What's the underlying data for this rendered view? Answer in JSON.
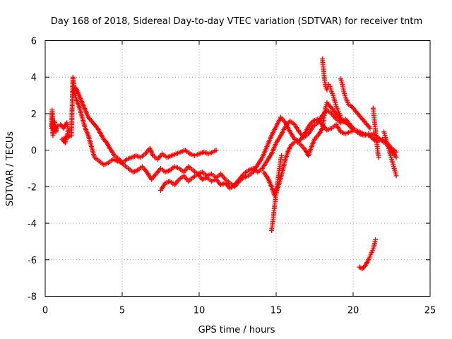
{
  "chart_data": {
    "type": "scatter",
    "title": "Day 168 of 2018, Sidereal Day-to-day VTEC variation (SDTVAR) for receiver tntm",
    "xlabel": "GPS time / hours",
    "ylabel": "SDTVAR / TECUs",
    "xlim": [
      0,
      25
    ],
    "ylim": [
      -8,
      6
    ],
    "xticks": [
      "0",
      "5",
      "10",
      "15",
      "20",
      "25"
    ],
    "yticks": [
      "-8",
      "-6",
      "-4",
      "-2",
      "0",
      "2",
      "4",
      "6"
    ],
    "grid": true,
    "marker": "+",
    "color": "#ff0000",
    "series": [
      {
        "name": "s1",
        "points": [
          [
            0.4,
            1.2
          ],
          [
            0.45,
            2.2
          ],
          [
            0.5,
            0.8
          ],
          [
            0.6,
            1.6
          ],
          [
            0.7,
            1.0
          ],
          [
            0.8,
            1.3
          ],
          [
            1.0,
            1.4
          ],
          [
            1.2,
            1.2
          ],
          [
            1.4,
            1.5
          ],
          [
            1.5,
            1.1
          ],
          [
            1.3,
            0.4
          ],
          [
            1.1,
            0.6
          ],
          [
            1.7,
            0.8
          ],
          [
            1.8,
            4.0
          ],
          [
            1.9,
            3.2
          ],
          [
            2.0,
            2.8
          ],
          [
            2.2,
            2.4
          ],
          [
            2.4,
            1.8
          ],
          [
            2.6,
            1.2
          ],
          [
            2.8,
            0.8
          ],
          [
            3.0,
            0.2
          ],
          [
            3.2,
            -0.4
          ],
          [
            3.5,
            -0.6
          ],
          [
            3.8,
            -0.8
          ],
          [
            4.1,
            -0.7
          ],
          [
            4.4,
            -0.5
          ],
          [
            4.7,
            -0.6
          ],
          [
            5.0,
            -0.7
          ],
          [
            5.3,
            -0.5
          ],
          [
            5.6,
            -0.4
          ],
          [
            5.9,
            -0.3
          ],
          [
            6.2,
            -0.4
          ],
          [
            6.5,
            -0.2
          ],
          [
            6.8,
            0.1
          ],
          [
            7.0,
            -0.3
          ],
          [
            7.3,
            -0.5
          ],
          [
            7.6,
            -0.2
          ],
          [
            7.9,
            -0.4
          ],
          [
            8.2,
            -0.3
          ],
          [
            8.5,
            -0.2
          ],
          [
            8.8,
            -0.1
          ],
          [
            9.1,
            0.0
          ],
          [
            9.4,
            -0.2
          ],
          [
            9.7,
            -0.3
          ],
          [
            10.0,
            -0.2
          ],
          [
            10.3,
            -0.1
          ],
          [
            10.6,
            -0.2
          ],
          [
            10.9,
            -0.1
          ],
          [
            11.1,
            0.0
          ]
        ]
      },
      {
        "name": "s2",
        "points": [
          [
            1.8,
            3.2
          ],
          [
            2.0,
            3.4
          ],
          [
            2.2,
            3.0
          ],
          [
            2.4,
            2.6
          ],
          [
            2.6,
            2.2
          ],
          [
            2.8,
            1.8
          ],
          [
            3.0,
            1.6
          ],
          [
            3.2,
            1.4
          ],
          [
            3.4,
            1.2
          ],
          [
            3.6,
            0.9
          ],
          [
            3.8,
            0.6
          ],
          [
            4.0,
            0.4
          ],
          [
            4.2,
            0.1
          ],
          [
            4.5,
            -0.3
          ],
          [
            4.8,
            -0.5
          ],
          [
            5.1,
            -0.8
          ],
          [
            5.4,
            -1.0
          ],
          [
            5.7,
            -1.2
          ],
          [
            6.0,
            -1.1
          ],
          [
            6.3,
            -0.9
          ],
          [
            6.6,
            -1.2
          ],
          [
            6.9,
            -1.6
          ],
          [
            7.2,
            -1.3
          ],
          [
            7.5,
            -1.0
          ],
          [
            7.8,
            -1.2
          ],
          [
            8.1,
            -1.1
          ],
          [
            8.4,
            -0.9
          ],
          [
            8.7,
            -1.0
          ],
          [
            9.0,
            -1.2
          ],
          [
            9.3,
            -0.9
          ],
          [
            9.6,
            -1.1
          ],
          [
            9.9,
            -1.3
          ],
          [
            10.2,
            -1.2
          ],
          [
            10.5,
            -1.4
          ],
          [
            10.8,
            -1.3
          ],
          [
            11.1,
            -1.5
          ],
          [
            11.4,
            -1.3
          ],
          [
            11.7,
            -1.6
          ],
          [
            12.0,
            -1.8
          ],
          [
            12.3,
            -2.0
          ],
          [
            12.6,
            -1.7
          ],
          [
            12.9,
            -1.5
          ],
          [
            13.2,
            -1.4
          ],
          [
            13.5,
            -1.2
          ],
          [
            13.8,
            -0.8
          ],
          [
            14.1,
            -0.4
          ],
          [
            14.4,
            0.2
          ],
          [
            14.7,
            0.8
          ],
          [
            15.0,
            1.3
          ],
          [
            15.3,
            1.8
          ],
          [
            15.6,
            1.5
          ],
          [
            15.9,
            1.0
          ],
          [
            16.2,
            0.6
          ],
          [
            16.5,
            0.5
          ],
          [
            16.8,
            0.8
          ],
          [
            17.1,
            1.3
          ],
          [
            17.4,
            1.6
          ],
          [
            17.7,
            1.7
          ],
          [
            18.0,
            1.4
          ],
          [
            18.3,
            1.1
          ],
          [
            18.6,
            1.2
          ],
          [
            18.9,
            1.4
          ],
          [
            19.2,
            1.0
          ],
          [
            19.5,
            0.9
          ],
          [
            19.8,
            1.0
          ],
          [
            20.1,
            1.1
          ],
          [
            20.4,
            0.9
          ],
          [
            20.7,
            0.8
          ],
          [
            21.0,
            0.9
          ],
          [
            21.3,
            0.6
          ],
          [
            21.6,
            0.5
          ],
          [
            21.9,
            0.6
          ],
          [
            22.2,
            0.4
          ],
          [
            22.5,
            0.1
          ],
          [
            22.8,
            -0.1
          ]
        ]
      },
      {
        "name": "s3",
        "points": [
          [
            7.5,
            -2.2
          ],
          [
            7.8,
            -1.8
          ],
          [
            8.1,
            -1.7
          ],
          [
            8.4,
            -1.9
          ],
          [
            8.7,
            -1.6
          ],
          [
            9.0,
            -1.4
          ],
          [
            9.3,
            -1.7
          ],
          [
            9.6,
            -1.5
          ],
          [
            9.9,
            -1.3
          ],
          [
            10.2,
            -1.6
          ],
          [
            10.5,
            -1.5
          ],
          [
            10.8,
            -1.7
          ],
          [
            11.1,
            -1.6
          ],
          [
            11.4,
            -1.9
          ],
          [
            11.7,
            -1.8
          ],
          [
            12.0,
            -2.1
          ],
          [
            12.3,
            -1.9
          ],
          [
            12.6,
            -1.6
          ],
          [
            12.9,
            -1.3
          ],
          [
            13.2,
            -1.1
          ],
          [
            13.5,
            -1.0
          ],
          [
            13.8,
            -1.2
          ],
          [
            14.1,
            -1.0
          ],
          [
            14.4,
            -0.6
          ],
          [
            14.7,
            -0.2
          ],
          [
            15.0,
            0.4
          ],
          [
            15.3,
            0.8
          ],
          [
            15.6,
            1.3
          ],
          [
            15.9,
            1.6
          ],
          [
            16.2,
            1.4
          ],
          [
            16.5,
            1.0
          ],
          [
            16.8,
            0.7
          ],
          [
            17.1,
            0.9
          ],
          [
            17.4,
            1.3
          ],
          [
            17.7,
            1.5
          ],
          [
            18.0,
            1.9
          ],
          [
            18.3,
            2.2
          ],
          [
            18.6,
            2.0
          ],
          [
            18.9,
            1.7
          ],
          [
            19.2,
            1.5
          ],
          [
            19.5,
            1.7
          ],
          [
            19.8,
            1.4
          ],
          [
            20.1,
            1.1
          ],
          [
            20.4,
            1.0
          ],
          [
            20.7,
            0.9
          ],
          [
            21.0,
            0.8
          ],
          [
            21.3,
            0.9
          ],
          [
            21.6,
            0.7
          ],
          [
            21.9,
            0.5
          ],
          [
            22.2,
            0.3
          ],
          [
            22.5,
            0.0
          ],
          [
            22.8,
            -0.4
          ]
        ]
      },
      {
        "name": "s4",
        "points": [
          [
            14.2,
            -1.2
          ],
          [
            14.5,
            -1.6
          ],
          [
            14.7,
            -2.0
          ],
          [
            14.9,
            -2.5
          ],
          [
            15.0,
            -2.3
          ],
          [
            15.2,
            -1.8
          ],
          [
            15.4,
            -1.2
          ],
          [
            15.6,
            -0.5
          ],
          [
            15.8,
            0.0
          ],
          [
            16.0,
            0.3
          ],
          [
            16.3,
            0.5
          ],
          [
            16.6,
            0.3
          ],
          [
            16.9,
            0.0
          ],
          [
            17.1,
            -0.3
          ],
          [
            17.3,
            0.2
          ],
          [
            17.5,
            0.6
          ],
          [
            17.8,
            0.9
          ],
          [
            18.0,
            1.2
          ],
          [
            18.1,
            1.8
          ],
          [
            18.2,
            2.3
          ],
          [
            18.3,
            2.6
          ],
          [
            18.5,
            2.4
          ],
          [
            18.7,
            2.2
          ],
          [
            18.9,
            2.0
          ],
          [
            19.1,
            1.8
          ],
          [
            19.3,
            1.6
          ],
          [
            19.5,
            1.5
          ],
          [
            19.7,
            1.4
          ],
          [
            19.9,
            1.2
          ]
        ]
      },
      {
        "name": "s5",
        "points": [
          [
            14.7,
            -4.4
          ],
          [
            14.75,
            -4.1
          ],
          [
            14.8,
            -3.8
          ],
          [
            14.85,
            -3.4
          ],
          [
            14.9,
            -3.0
          ],
          [
            14.95,
            -2.7
          ],
          [
            15.0,
            -2.4
          ],
          [
            15.05,
            -2.0
          ],
          [
            15.1,
            -1.7
          ],
          [
            15.15,
            -1.4
          ],
          [
            15.2,
            -1.1
          ],
          [
            15.25,
            -0.8
          ],
          [
            15.3,
            -0.5
          ],
          [
            15.35,
            -0.3
          ]
        ]
      },
      {
        "name": "s6",
        "points": [
          [
            18.0,
            5.0
          ],
          [
            18.05,
            4.6
          ],
          [
            18.1,
            4.2
          ],
          [
            18.15,
            3.8
          ],
          [
            18.2,
            3.5
          ],
          [
            18.3,
            3.3
          ],
          [
            18.4,
            3.6
          ],
          [
            18.5,
            3.5
          ],
          [
            18.6,
            3.2
          ],
          [
            18.7,
            3.0
          ],
          [
            18.8,
            2.7
          ],
          [
            18.9,
            2.4
          ],
          [
            19.0,
            2.2
          ],
          [
            19.1,
            2.0
          ],
          [
            19.2,
            1.8
          ]
        ]
      },
      {
        "name": "s7",
        "points": [
          [
            19.2,
            3.9
          ],
          [
            19.3,
            3.6
          ],
          [
            19.4,
            3.2
          ],
          [
            19.5,
            2.9
          ],
          [
            19.6,
            2.7
          ],
          [
            19.7,
            2.5
          ],
          [
            19.9,
            2.4
          ],
          [
            20.1,
            2.2
          ],
          [
            20.3,
            2.0
          ],
          [
            20.5,
            1.8
          ],
          [
            20.7,
            1.6
          ],
          [
            20.9,
            1.4
          ],
          [
            21.1,
            1.2
          ]
        ]
      },
      {
        "name": "s8",
        "points": [
          [
            21.3,
            2.3
          ],
          [
            21.35,
            1.9
          ],
          [
            21.4,
            1.5
          ],
          [
            21.45,
            1.1
          ],
          [
            21.5,
            0.7
          ],
          [
            21.55,
            0.3
          ],
          [
            21.6,
            -0.1
          ],
          [
            21.65,
            -0.4
          ]
        ]
      },
      {
        "name": "s9",
        "points": [
          [
            22.0,
            1.0
          ],
          [
            22.1,
            0.7
          ],
          [
            22.2,
            0.4
          ],
          [
            22.3,
            0.1
          ],
          [
            22.4,
            -0.2
          ],
          [
            22.5,
            -0.5
          ],
          [
            22.6,
            -0.8
          ],
          [
            22.7,
            -1.1
          ],
          [
            22.8,
            -1.4
          ]
        ]
      },
      {
        "name": "s10",
        "points": [
          [
            20.4,
            -6.4
          ],
          [
            20.6,
            -6.5
          ],
          [
            20.8,
            -6.3
          ],
          [
            21.0,
            -6.0
          ],
          [
            21.1,
            -5.8
          ],
          [
            21.2,
            -5.6
          ],
          [
            21.3,
            -5.4
          ],
          [
            21.4,
            -5.1
          ],
          [
            21.45,
            -4.9
          ]
        ]
      }
    ]
  }
}
